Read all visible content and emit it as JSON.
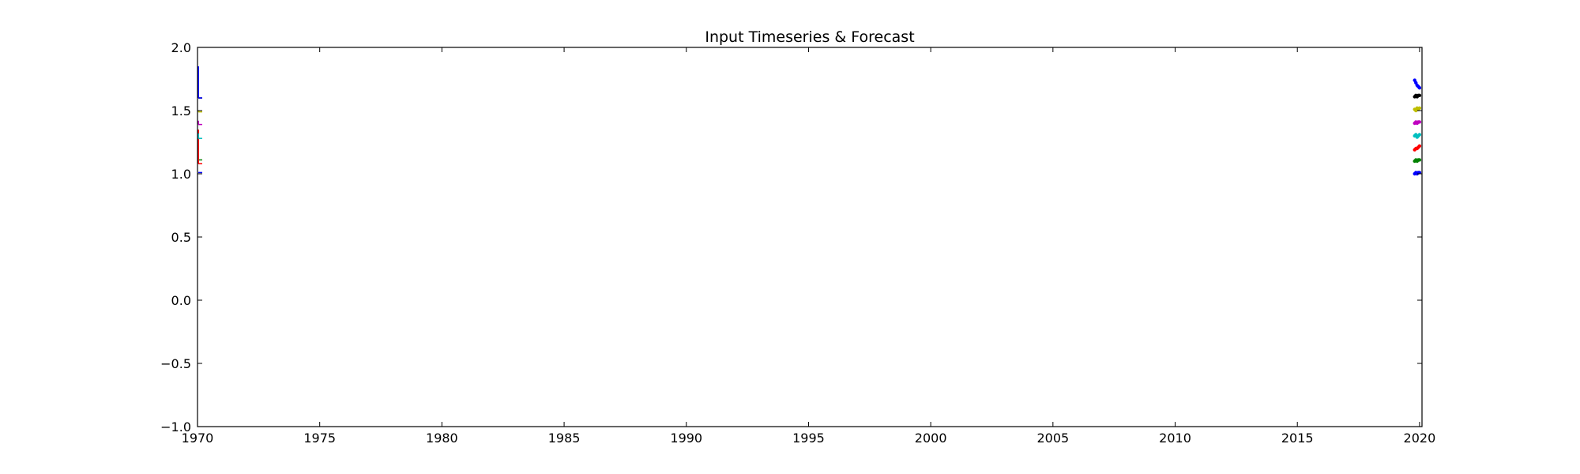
{
  "chart_data": {
    "type": "line",
    "title": "Input Timeseries & Forecast",
    "xlabel": "",
    "ylabel": "",
    "xlim": [
      1970,
      2020.1
    ],
    "ylim": [
      -1.0,
      2.0
    ],
    "x_ticks": [
      1970,
      1975,
      1980,
      1985,
      1990,
      1995,
      2000,
      2005,
      2010,
      2015,
      2020
    ],
    "x_tick_labels": [
      "1970",
      "1975",
      "1980",
      "1985",
      "1990",
      "1995",
      "2000",
      "2005",
      "2010",
      "2015",
      "2020"
    ],
    "y_ticks": [
      -1.0,
      -0.5,
      0.0,
      0.5,
      1.0,
      1.5,
      2.0
    ],
    "y_tick_labels": [
      "−1.0",
      "−0.5",
      "0.0",
      "0.5",
      "1.0",
      "1.5",
      "2.0"
    ],
    "grid": false,
    "legend": "none",
    "series": [
      {
        "color": "#0000ff",
        "x": [
          1970.0,
          1970.0
        ],
        "y": [
          1.01,
          1.01
        ],
        "forecast_x": [
          2019.8,
          2019.85,
          2019.9,
          2019.95,
          2020.0
        ],
        "forecast_y": [
          1.0,
          1.01,
          1.0,
          1.01,
          1.01
        ]
      },
      {
        "color": "#008000",
        "x": [
          1970.0,
          1970.0
        ],
        "y": [
          1.11,
          1.11
        ],
        "forecast_x": [
          2019.8,
          2019.85,
          2019.9,
          2019.95,
          2020.0
        ],
        "forecast_y": [
          1.1,
          1.11,
          1.1,
          1.11,
          1.11
        ]
      },
      {
        "color": "#ff0000",
        "x": [
          1970.0,
          1970.0
        ],
        "y": [
          1.08,
          1.35
        ],
        "forecast_x": [
          2019.8,
          2019.85,
          2019.9,
          2019.95,
          2020.0
        ],
        "forecast_y": [
          1.19,
          1.2,
          1.2,
          1.21,
          1.22
        ]
      },
      {
        "color": "#00bfbf",
        "x": [
          1970.0,
          1970.0
        ],
        "y": [
          1.28,
          1.32
        ],
        "forecast_x": [
          2019.8,
          2019.85,
          2019.9,
          2019.95,
          2020.0
        ],
        "forecast_y": [
          1.3,
          1.31,
          1.29,
          1.3,
          1.31
        ]
      },
      {
        "color": "#bf00bf",
        "x": [
          1970.0,
          1970.0
        ],
        "y": [
          1.39,
          1.42
        ],
        "forecast_x": [
          2019.8,
          2019.85,
          2019.9,
          2019.95,
          2020.0
        ],
        "forecast_y": [
          1.4,
          1.41,
          1.4,
          1.41,
          1.41
        ]
      },
      {
        "color": "#bfbf00",
        "x": [
          1970.0,
          1970.0
        ],
        "y": [
          1.49,
          1.5
        ],
        "forecast_x": [
          2019.8,
          2019.85,
          2019.9,
          2019.95,
          2020.0
        ],
        "forecast_y": [
          1.51,
          1.5,
          1.52,
          1.51,
          1.52
        ]
      },
      {
        "color": "#000000",
        "x": [
          1970.0,
          1970.0
        ],
        "y": [
          1.6,
          1.62
        ],
        "forecast_x": [
          2019.8,
          2019.85,
          2019.9,
          2019.95,
          2020.0
        ],
        "forecast_y": [
          1.61,
          1.62,
          1.61,
          1.62,
          1.62
        ]
      },
      {
        "color": "#0000ff",
        "x": [
          1970.0,
          1970.0
        ],
        "y": [
          1.6,
          1.85
        ],
        "forecast_x": [
          2019.8,
          2019.85,
          2019.9,
          2019.95,
          2020.0
        ],
        "forecast_y": [
          1.74,
          1.72,
          1.7,
          1.69,
          1.68
        ]
      }
    ]
  }
}
